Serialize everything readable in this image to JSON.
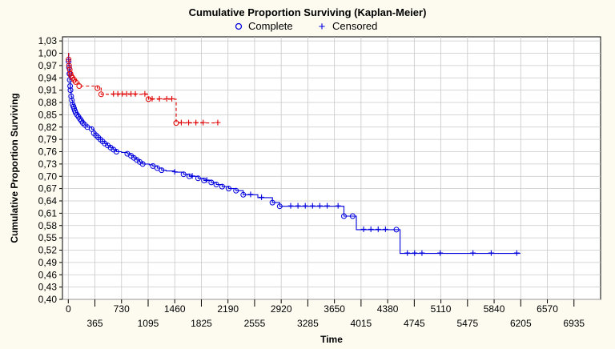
{
  "chart_data": {
    "type": "line",
    "title": "Cumulative Proportion Surviving (Kaplan-Meier)",
    "xlabel": "Time",
    "ylabel": "Cumulative Proportion Surviving",
    "xlim": [
      -80,
      7300
    ],
    "ylim": [
      0.4,
      1.04
    ],
    "grid": true,
    "legend": {
      "placement": "top-center",
      "entries": [
        {
          "symbol": "o",
          "label": "Complete"
        },
        {
          "symbol": "+",
          "label": "Censored"
        }
      ]
    },
    "x_ticks_upper": [
      "0",
      "730",
      "1460",
      "2190",
      "2920",
      "3650",
      "4380",
      "5110",
      "5840",
      "6570"
    ],
    "x_ticks_lower": [
      "365",
      "1095",
      "1825",
      "2555",
      "3285",
      "4015",
      "4745",
      "5475",
      "6205",
      "6935"
    ],
    "y_ticks": [
      "0,40",
      "0,43",
      "0,46",
      "0,49",
      "0,52",
      "0,55",
      "0,58",
      "0,61",
      "0,64",
      "0,67",
      "0,70",
      "0,73",
      "0,76",
      "0,79",
      "0,82",
      "0,85",
      "0,88",
      "0,91",
      "0,94",
      "0,97",
      "1,00",
      "1,03"
    ],
    "colors": {
      "blue_series": "#0000dd",
      "red_series": "#e00000"
    },
    "series": [
      {
        "style": "solid",
        "color": "#0000dd",
        "x": [
          0,
          5,
          10,
          15,
          20,
          25,
          30,
          40,
          50,
          60,
          70,
          80,
          90,
          100,
          120,
          140,
          160,
          180,
          200,
          230,
          260,
          290,
          320,
          350,
          380,
          410,
          440,
          470,
          500,
          540,
          580,
          620,
          660,
          730,
          810,
          860,
          900,
          940,
          980,
          1020,
          1060,
          1110,
          1160,
          1220,
          1280,
          1340,
          1460,
          1580,
          1660,
          1780,
          1860,
          1960,
          2030,
          2110,
          2200,
          2300,
          2400,
          2600,
          2800,
          2900,
          3000,
          3650,
          3780,
          3900,
          3950,
          4500,
          4550,
          6200
        ],
        "y": [
          1.0,
          0.98,
          0.965,
          0.95,
          0.935,
          0.92,
          0.91,
          0.895,
          0.885,
          0.875,
          0.87,
          0.865,
          0.86,
          0.855,
          0.85,
          0.845,
          0.84,
          0.835,
          0.83,
          0.825,
          0.82,
          0.82,
          0.815,
          0.805,
          0.8,
          0.795,
          0.79,
          0.785,
          0.78,
          0.775,
          0.77,
          0.765,
          0.76,
          0.758,
          0.755,
          0.75,
          0.745,
          0.74,
          0.735,
          0.73,
          0.73,
          0.728,
          0.725,
          0.72,
          0.715,
          0.713,
          0.71,
          0.705,
          0.7,
          0.695,
          0.69,
          0.685,
          0.68,
          0.675,
          0.67,
          0.665,
          0.655,
          0.648,
          0.636,
          0.627,
          0.627,
          0.627,
          0.603,
          0.603,
          0.57,
          0.57,
          0.512,
          0.512
        ],
        "complete_markers_x": [
          5,
          10,
          15,
          20,
          25,
          30,
          40,
          50,
          60,
          70,
          80,
          90,
          100,
          120,
          140,
          160,
          180,
          200,
          230,
          260,
          320,
          350,
          380,
          410,
          440,
          470,
          500,
          540,
          580,
          620,
          660,
          810,
          860,
          900,
          940,
          980,
          1020,
          1160,
          1220,
          1280,
          1580,
          1660,
          1780,
          1860,
          1960,
          2030,
          2110,
          2200,
          2300,
          2400,
          2800,
          2900,
          3780,
          3900,
          4500
        ],
        "censored_markers_x": [
          1460,
          1700,
          1900,
          2500,
          2650,
          3050,
          3150,
          3250,
          3350,
          3450,
          3550,
          3700,
          4050,
          4150,
          4250,
          4350,
          4650,
          4750,
          4850,
          5100,
          5550,
          5800,
          6150
        ]
      },
      {
        "style": "dashed",
        "color": "#e00000",
        "x": [
          0,
          5,
          10,
          20,
          30,
          40,
          60,
          80,
          100,
          150,
          400,
          450,
          1100,
          1480,
          2050
        ],
        "y": [
          1.0,
          0.985,
          0.97,
          0.96,
          0.95,
          0.945,
          0.94,
          0.935,
          0.93,
          0.92,
          0.915,
          0.9,
          0.888,
          0.83,
          0.83
        ],
        "complete_markers_x": [
          5,
          10,
          20,
          30,
          40,
          60,
          80,
          100,
          150,
          400,
          450,
          1100,
          1480
        ],
        "censored_markers_x": [
          620,
          680,
          740,
          800,
          860,
          920,
          1050,
          1150,
          1250,
          1350,
          1420,
          1550,
          1650,
          1750,
          1850,
          2050
        ]
      }
    ]
  }
}
